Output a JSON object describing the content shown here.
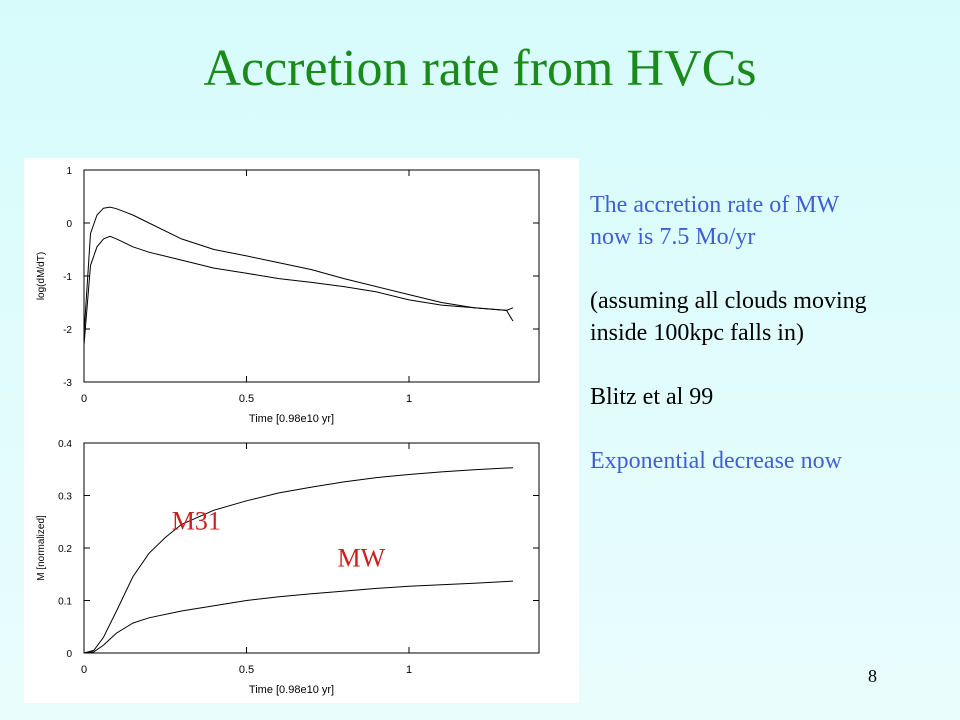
{
  "slide": {
    "title": "Accretion rate from HVCs",
    "page_number": "8"
  },
  "notes": {
    "line1": "The accretion rate of MW",
    "line2": "now is 7.5 Mo/yr",
    "line3": "(assuming all clouds moving",
    "line4": "inside 100kpc falls in)",
    "line5": "Blitz et al 99",
    "line6": "Exponential decrease now"
  },
  "colors": {
    "title": "#1a8a1a",
    "note_blue": "#4060d0",
    "annotation_red": "#cc1f1f"
  },
  "chart_data": [
    {
      "type": "line",
      "title": "",
      "xlabel": "Time [0.98e10 yr]",
      "ylabel": "log(dM/dT)",
      "xlim": [
        0,
        1.4
      ],
      "ylim": [
        -3,
        1
      ],
      "xticks": [
        "0",
        "0.5",
        "1"
      ],
      "yticks": [
        "1",
        "0",
        "-1",
        "-2",
        "-3"
      ],
      "grid": false,
      "series": [
        {
          "x": [
            0.0,
            0.02,
            0.04,
            0.06,
            0.08,
            0.1,
            0.15,
            0.2,
            0.3,
            0.4,
            0.5,
            0.6,
            0.7,
            0.8,
            0.9,
            1.0,
            1.1,
            1.2,
            1.3,
            1.32
          ],
          "y": [
            -2.1,
            -0.2,
            0.15,
            0.28,
            0.3,
            0.27,
            0.15,
            0.0,
            -0.3,
            -0.5,
            -0.62,
            -0.75,
            -0.88,
            -1.05,
            -1.2,
            -1.35,
            -1.5,
            -1.6,
            -1.65,
            -1.6
          ]
        },
        {
          "x": [
            0.0,
            0.02,
            0.04,
            0.06,
            0.08,
            0.1,
            0.15,
            0.2,
            0.3,
            0.4,
            0.5,
            0.6,
            0.7,
            0.8,
            0.9,
            1.0,
            1.1,
            1.2,
            1.3,
            1.32
          ],
          "y": [
            -2.3,
            -0.8,
            -0.45,
            -0.3,
            -0.25,
            -0.3,
            -0.45,
            -0.55,
            -0.7,
            -0.85,
            -0.95,
            -1.05,
            -1.12,
            -1.2,
            -1.3,
            -1.45,
            -1.55,
            -1.6,
            -1.65,
            -1.85
          ]
        }
      ]
    },
    {
      "type": "line",
      "title": "",
      "xlabel": "Time [0.98e10 yr]",
      "ylabel": "M [normalized]",
      "xlim": [
        0,
        1.4
      ],
      "ylim": [
        0,
        0.4
      ],
      "xticks": [
        "0",
        "0.5",
        "1"
      ],
      "yticks": [
        "0.4",
        "0.3",
        "0.2",
        "0.1",
        "0"
      ],
      "grid": false,
      "series": [
        {
          "name": "M31",
          "x": [
            0.0,
            0.03,
            0.06,
            0.1,
            0.15,
            0.2,
            0.25,
            0.3,
            0.4,
            0.5,
            0.6,
            0.7,
            0.8,
            0.9,
            1.0,
            1.1,
            1.2,
            1.32
          ],
          "y": [
            0.0,
            0.005,
            0.03,
            0.08,
            0.145,
            0.19,
            0.22,
            0.245,
            0.272,
            0.29,
            0.305,
            0.316,
            0.326,
            0.334,
            0.34,
            0.345,
            0.349,
            0.353
          ]
        },
        {
          "name": "MW",
          "x": [
            0.0,
            0.03,
            0.06,
            0.1,
            0.15,
            0.2,
            0.3,
            0.4,
            0.5,
            0.6,
            0.7,
            0.8,
            0.9,
            1.0,
            1.1,
            1.2,
            1.32
          ],
          "y": [
            0.0,
            0.002,
            0.015,
            0.038,
            0.057,
            0.067,
            0.08,
            0.09,
            0.1,
            0.107,
            0.113,
            0.118,
            0.123,
            0.127,
            0.13,
            0.133,
            0.137
          ]
        }
      ]
    }
  ]
}
